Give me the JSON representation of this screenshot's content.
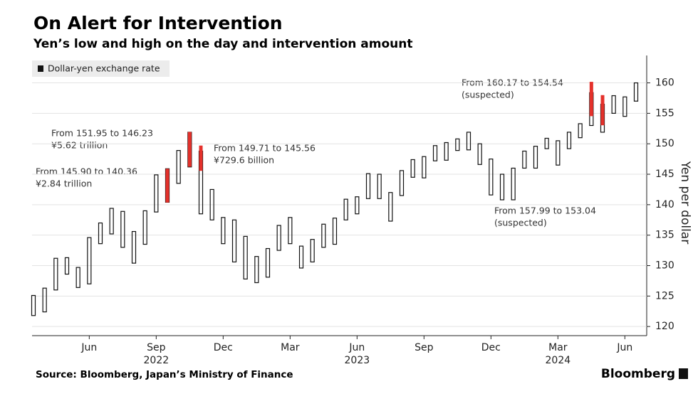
{
  "chart_data": {
    "type": "range-bar",
    "title": "On Alert for Intervention",
    "subtitle": "Yen’s low and high on the day and intervention amount",
    "y_label": "Yen per dollar",
    "source": "Source: Bloomberg, Japan’s Ministry of Finance",
    "brand": "Bloomberg",
    "categories": [
      null,
      null,
      null,
      null,
      null,
      "Jun",
      null,
      null,
      null,
      null,
      null,
      "Sep",
      null,
      null,
      null,
      null,
      null,
      "Dec",
      null,
      null,
      null,
      null,
      null,
      "Mar",
      null,
      null,
      null,
      null,
      null,
      "Jun",
      null,
      null,
      null,
      null,
      null,
      "Sep",
      null,
      null,
      null,
      null,
      null,
      "Dec",
      null,
      null,
      null,
      null,
      null,
      "Mar",
      null,
      null,
      null,
      null,
      null,
      "Jun",
      null
    ],
    "years": [
      "2022",
      "2023",
      "2024"
    ],
    "series": [
      {
        "name": "Dollar-yen exchange rate",
        "color": "#111111",
        "low": [
          121.8,
          122.4,
          126.0,
          128.6,
          126.4,
          127.0,
          133.6,
          135.2,
          133.0,
          130.4,
          133.5,
          138.8,
          140.4,
          143.5,
          146.2,
          138.5,
          137.5,
          133.6,
          130.6,
          127.8,
          127.2,
          128.1,
          132.5,
          133.6,
          129.6,
          130.6,
          133.0,
          133.5,
          137.5,
          138.5,
          141.0,
          141.0,
          137.3,
          141.5,
          144.5,
          144.4,
          147.2,
          147.3,
          148.9,
          149.0,
          146.6,
          141.6,
          140.8,
          140.8,
          146.0,
          146.0,
          149.2,
          146.5,
          149.2,
          151.0,
          153.0,
          151.9,
          155.0,
          154.5,
          157.0
        ],
        "high": [
          125.1,
          126.3,
          131.2,
          131.3,
          129.7,
          134.6,
          137.0,
          139.4,
          138.9,
          135.6,
          139.0,
          144.9,
          145.9,
          148.9,
          151.9,
          148.8,
          142.5,
          137.9,
          137.5,
          134.8,
          131.5,
          132.8,
          136.6,
          137.9,
          133.2,
          134.3,
          136.8,
          137.8,
          140.9,
          141.3,
          145.1,
          145.0,
          142.0,
          145.6,
          147.4,
          147.9,
          149.7,
          150.2,
          150.8,
          151.9,
          150.0,
          147.5,
          145.0,
          146.0,
          148.8,
          149.6,
          150.9,
          150.5,
          151.9,
          153.3,
          158.4,
          156.5,
          157.9,
          157.7,
          160.0
        ]
      }
    ],
    "interventions": {
      "color": "#e4312b",
      "from": [
        null,
        null,
        null,
        null,
        null,
        null,
        null,
        null,
        null,
        null,
        null,
        null,
        145.9,
        null,
        151.95,
        149.71,
        null,
        null,
        null,
        null,
        null,
        null,
        null,
        null,
        null,
        null,
        null,
        null,
        null,
        null,
        null,
        null,
        null,
        null,
        null,
        null,
        null,
        null,
        null,
        null,
        null,
        null,
        null,
        null,
        null,
        null,
        null,
        null,
        null,
        null,
        160.17,
        157.99,
        null,
        null,
        null
      ],
      "to": [
        null,
        null,
        null,
        null,
        null,
        null,
        null,
        null,
        null,
        null,
        null,
        null,
        140.36,
        null,
        146.23,
        145.56,
        null,
        null,
        null,
        null,
        null,
        null,
        null,
        null,
        null,
        null,
        null,
        null,
        null,
        null,
        null,
        null,
        null,
        null,
        null,
        null,
        null,
        null,
        null,
        null,
        null,
        null,
        null,
        null,
        null,
        null,
        null,
        null,
        null,
        null,
        154.54,
        153.04,
        null,
        null,
        null
      ]
    },
    "annotations": [
      [
        "From 151.95 to 146.23",
        "¥5.62 trillion"
      ],
      [
        "From 145.90 to 140.36",
        "¥2.84 trillion"
      ],
      [
        "From 149.71 to 145.56",
        "¥729.6 billion"
      ],
      [
        "From 160.17 to 154.54",
        "(suspected)"
      ],
      [
        "From 157.99 to 153.04",
        "(suspected)"
      ]
    ],
    "ylim": [
      118.5,
      164.5
    ],
    "yticks": [
      120,
      125,
      130,
      135,
      140,
      145,
      150,
      155,
      160
    ],
    "grid": true
  }
}
